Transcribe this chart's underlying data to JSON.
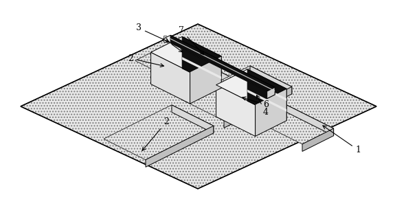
{
  "bg_color": "#ffffff",
  "fig_w": 5.75,
  "fig_h": 3.06,
  "stipple_fc": "#e4e4e4",
  "white_top": "#f5f5f5",
  "light_side": "#e0e0e0",
  "mid_side": "#c0c0c0",
  "dark_front": "#111111",
  "black": "#000000",
  "base_outline": "#000000"
}
